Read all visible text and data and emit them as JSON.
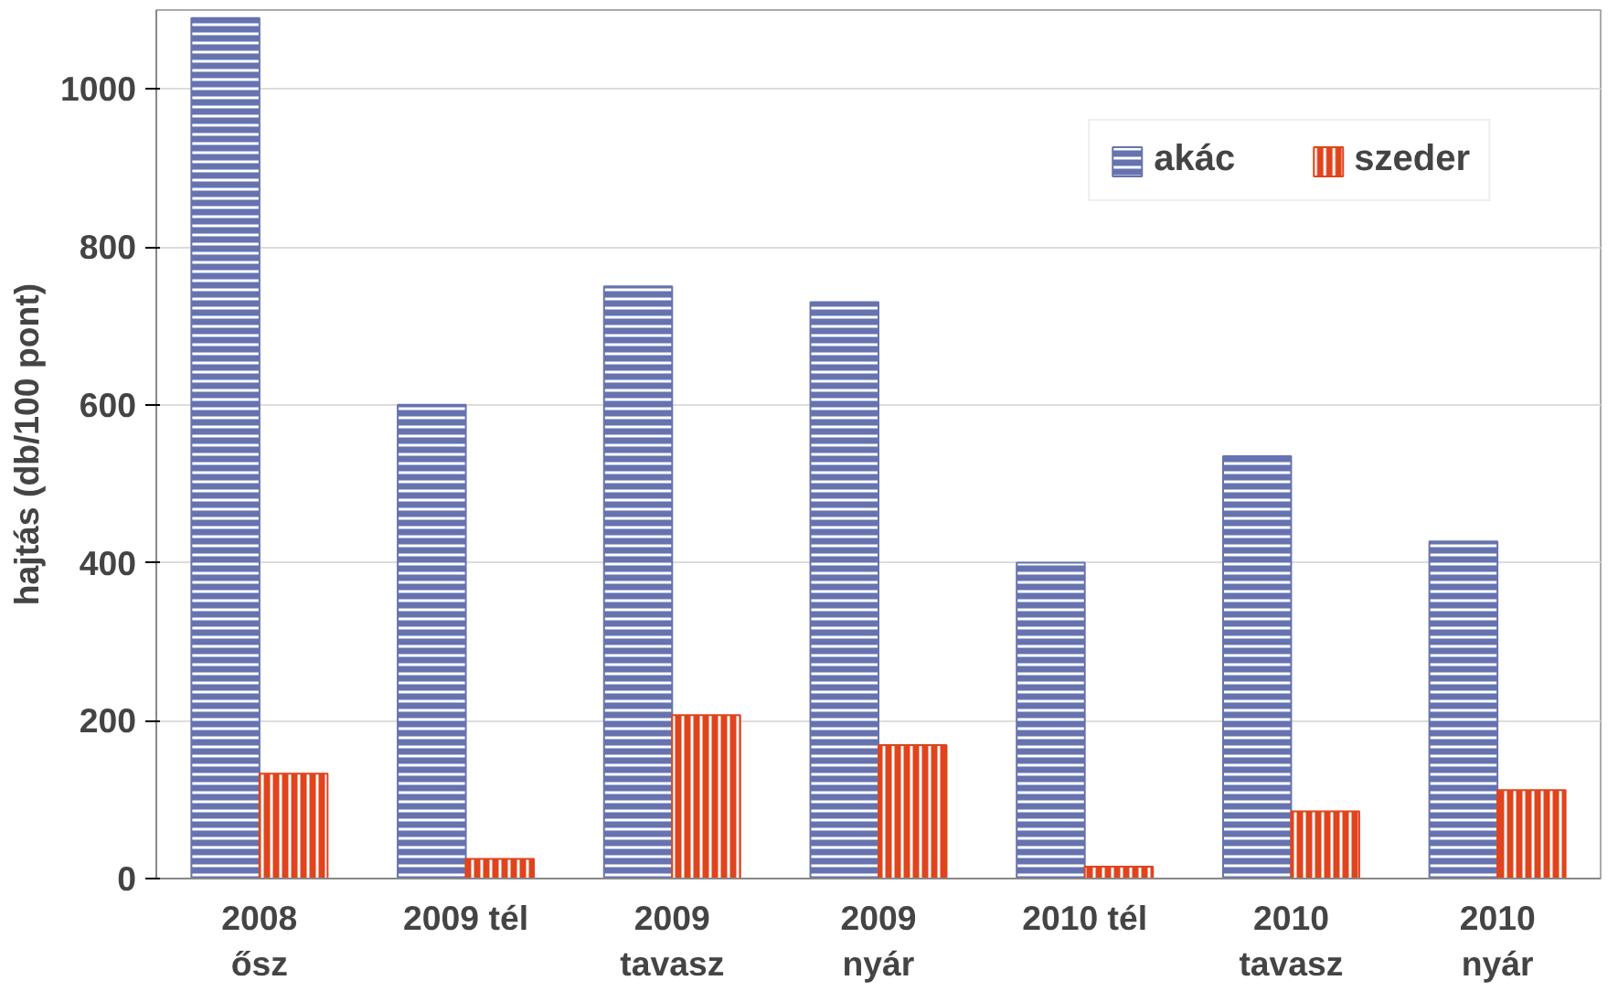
{
  "chart_data": {
    "type": "bar",
    "ylabel": "hajtás (db/100 pont)",
    "categories": [
      "2008\nősz",
      "2009 tél",
      "2009\ntavasz",
      "2009\nnyár",
      "2010 tél",
      "2010\ntavasz",
      "2010\nnyár"
    ],
    "series": [
      {
        "name": "akác",
        "color": "#6673b0",
        "values": [
          1090,
          600,
          750,
          730,
          400,
          535,
          427
        ]
      },
      {
        "name": "szeder",
        "color": "#e0441c",
        "values": [
          133,
          25,
          207,
          169,
          15,
          85,
          112
        ]
      }
    ],
    "ylim": [
      0,
      1100
    ],
    "yticks": [
      0,
      200,
      400,
      600,
      800,
      1000
    ],
    "grid": "y",
    "legend": "top right"
  }
}
